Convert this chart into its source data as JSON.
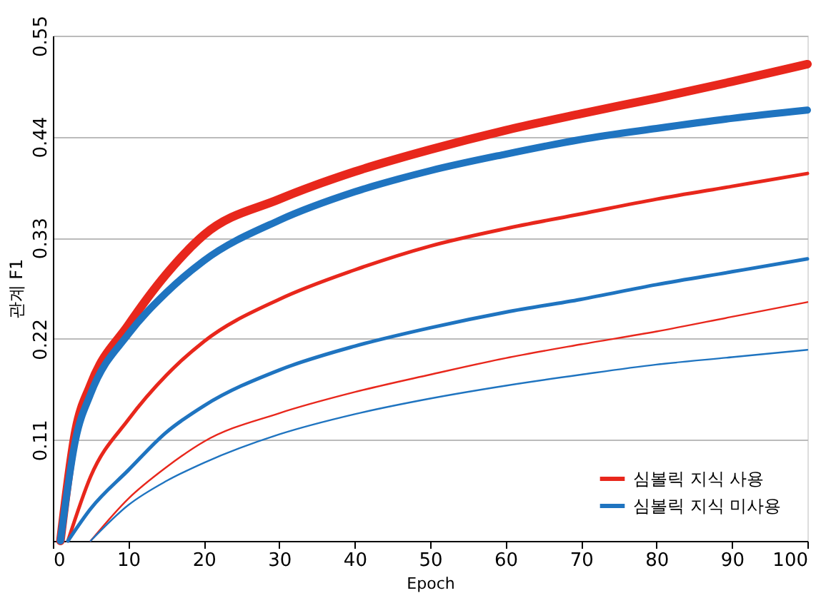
{
  "chart_data": {
    "type": "line",
    "xlabel": "Epoch",
    "ylabel": "관계 F1",
    "xlim": [
      0,
      100
    ],
    "ylim": [
      0,
      0.55
    ],
    "xticks": [
      0,
      10,
      20,
      30,
      40,
      50,
      60,
      70,
      80,
      90,
      100
    ],
    "yticks": [
      0.11,
      0.22,
      0.33,
      0.44,
      0.55
    ],
    "grid": "y",
    "legend": "bottom right",
    "line_style": "solid",
    "marker": "none",
    "series": [
      {
        "name": "심볼릭 지식 사용",
        "color": "#e8271c",
        "x": [
          1,
          3,
          5,
          10,
          15,
          20,
          30,
          40,
          50,
          60,
          70,
          80,
          90,
          100
        ],
        "values": [
          0,
          0.12,
          0.17,
          0.235,
          0.29,
          0.333,
          0.372,
          0.402,
          0.426,
          0.447,
          0.465,
          0.482,
          0.5,
          0.519
        ]
      },
      {
        "name": "심볼릭 지식 미사용",
        "color": "#1f74c0",
        "x": [
          1,
          3,
          5,
          10,
          15,
          20,
          30,
          40,
          50,
          60,
          70,
          80,
          90,
          100
        ],
        "values": [
          0,
          0.11,
          0.16,
          0.225,
          0.27,
          0.305,
          0.349,
          0.38,
          0.403,
          0.421,
          0.437,
          0.449,
          0.46,
          0.469
        ]
      },
      {
        "color": "#e8271c",
        "x": [
          2,
          5,
          10,
          15,
          20,
          30,
          40,
          50,
          60,
          70,
          80,
          90,
          100
        ],
        "values": [
          0,
          0.07,
          0.132,
          0.18,
          0.217,
          0.263,
          0.295,
          0.321,
          0.34,
          0.356,
          0.372,
          0.386,
          0.4
        ]
      },
      {
        "color": "#1f74c0",
        "x": [
          2,
          5,
          10,
          15,
          20,
          30,
          40,
          50,
          60,
          70,
          80,
          90,
          100
        ],
        "values": [
          0,
          0.035,
          0.077,
          0.118,
          0.147,
          0.186,
          0.212,
          0.232,
          0.249,
          0.263,
          0.279,
          0.293,
          0.307
        ]
      },
      {
        "color": "#e8271c",
        "x": [
          5,
          10,
          15,
          20,
          30,
          40,
          50,
          60,
          70,
          80,
          90,
          100
        ],
        "values": [
          0,
          0.046,
          0.08,
          0.108,
          0.139,
          0.162,
          0.181,
          0.199,
          0.214,
          0.228,
          0.244,
          0.26
        ]
      },
      {
        "color": "#1f74c0",
        "x": [
          5,
          10,
          15,
          20,
          30,
          40,
          50,
          60,
          70,
          80,
          90,
          100
        ],
        "values": [
          0,
          0.039,
          0.065,
          0.085,
          0.116,
          0.138,
          0.155,
          0.169,
          0.181,
          0.192,
          0.2,
          0.208
        ]
      }
    ]
  }
}
